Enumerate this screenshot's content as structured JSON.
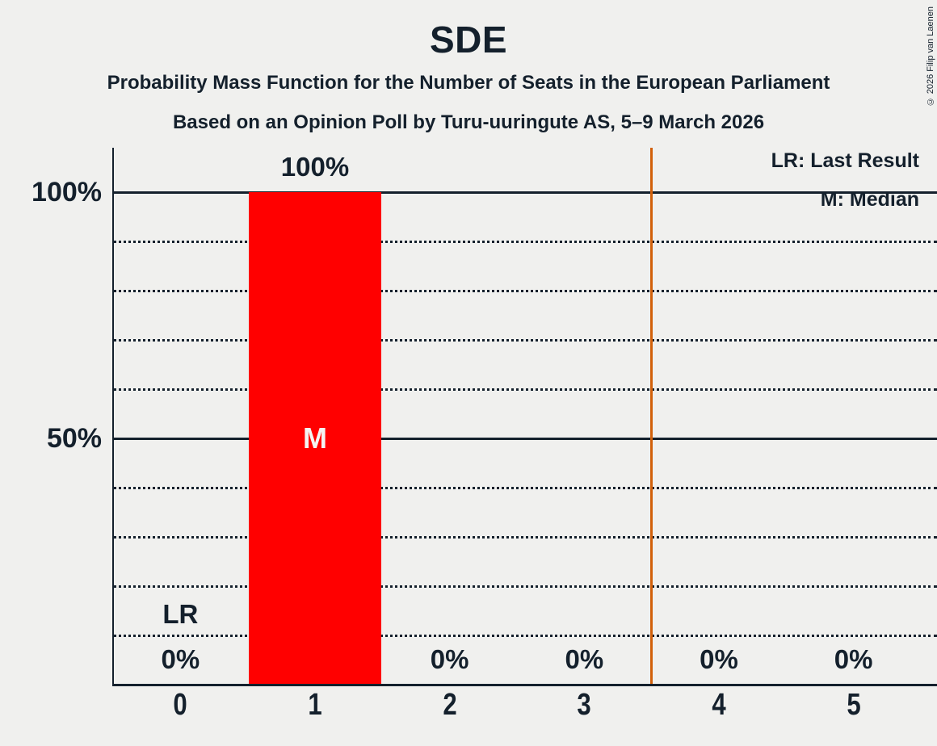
{
  "title": "SDE",
  "subtitle1": "Probability Mass Function for the Number of Seats in the European Parliament",
  "subtitle2": "Based on an Opinion Poll by Turu-uuringute AS, 5–9 March 2026",
  "copyright": "© 2026 Filip van Laenen",
  "legend": {
    "lr": "LR: Last Result",
    "m": "M: Median"
  },
  "colors": {
    "background": "#f0f0ee",
    "text": "#14202c",
    "bar": "#ff0000",
    "bar_marker_text": "#f4f4f2",
    "majority_line": "#d2600a"
  },
  "chart_data": {
    "type": "bar",
    "title": "SDE",
    "categories": [
      "0",
      "1",
      "2",
      "3",
      "4",
      "5"
    ],
    "values": [
      0,
      100,
      0,
      0,
      0,
      0
    ],
    "value_labels": [
      "0%",
      "100%",
      "0%",
      "0%",
      "0%",
      "0%"
    ],
    "yticks": [
      {
        "value": 100,
        "label": "100%"
      },
      {
        "value": 50,
        "label": "50%"
      }
    ],
    "solid_gridlines": [
      100,
      50
    ],
    "dotted_gridlines": [
      90,
      80,
      70,
      60,
      40,
      30,
      20,
      10
    ],
    "ylim": [
      0,
      109
    ],
    "grid": true,
    "legend_position": "top-right",
    "median": {
      "category": "1",
      "marker": "M"
    },
    "last_result": {
      "category": "0",
      "marker": "LR"
    },
    "majority_threshold_x": 3.5
  }
}
